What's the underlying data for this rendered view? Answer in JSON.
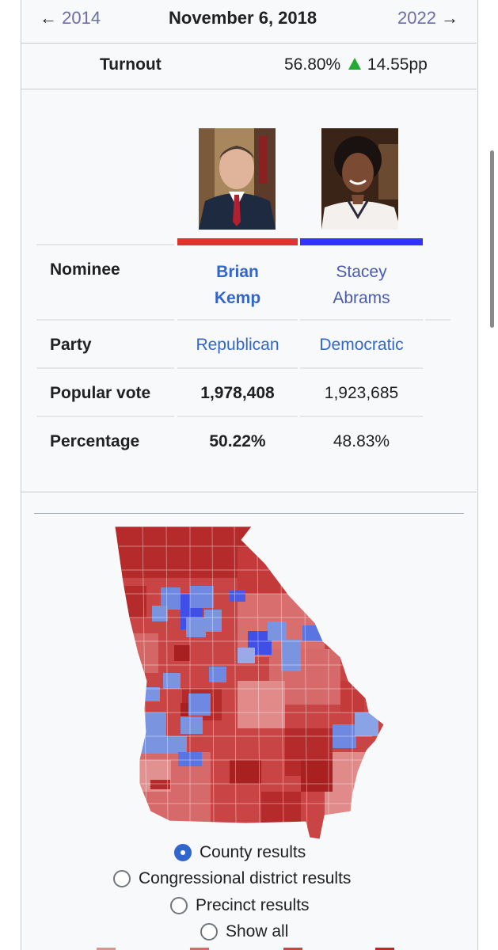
{
  "nav": {
    "prev_year": "2014",
    "date": "November 6, 2018",
    "next_year": "2022",
    "prev_arrow": "←",
    "next_arrow": "→"
  },
  "turnout": {
    "label": "Turnout",
    "value": "56.80%",
    "change": "14.55pp",
    "change_icon": "increase-triangle-icon",
    "change_color": "#22aa33"
  },
  "candidates": [
    {
      "name_line1": "Brian",
      "name_line2": "Kemp",
      "party": "Republican",
      "popular_vote": "1,978,408",
      "percentage": "50.22%",
      "color": "#dd3333",
      "winner": true
    },
    {
      "name_line1": "Stacey",
      "name_line2": "Abrams",
      "party": "Democratic",
      "popular_vote": "1,923,685",
      "percentage": "48.83%",
      "color": "#3333ff",
      "winner": false
    }
  ],
  "row_labels": {
    "nominee": "Nominee",
    "party": "Party",
    "popular_vote": "Popular vote",
    "percentage": "Percentage"
  },
  "map": {
    "icon": "georgia-county-results-map",
    "colors": {
      "dark_red": "#b22222",
      "red": "#d05050",
      "light_red": "#e08a8a",
      "blue": "#5f7fd6",
      "dark_blue": "#3f4fe0",
      "light_blue": "#9aaae6"
    }
  },
  "radio_options": [
    {
      "label": "County results",
      "checked": true
    },
    {
      "label": "Congressional district results",
      "checked": false
    },
    {
      "label": "Precinct results",
      "checked": false
    },
    {
      "label": "Show all",
      "checked": false
    }
  ]
}
